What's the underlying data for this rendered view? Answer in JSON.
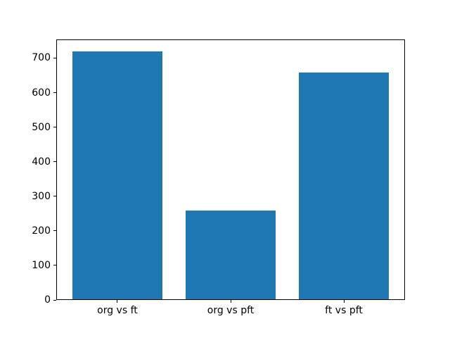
{
  "chart_data": {
    "type": "bar",
    "title": "",
    "xlabel": "",
    "ylabel": "",
    "categories": [
      "org vs ft",
      "org vs pft",
      "ft vs pft"
    ],
    "values": [
      718,
      256,
      656
    ],
    "yticks": [
      0,
      100,
      200,
      300,
      400,
      500,
      600,
      700
    ],
    "ylim": [
      0,
      754
    ],
    "bar_color": "#1f77b4",
    "grid": false,
    "legend": null,
    "background_color": "#ffffff",
    "spine_color": "#000000"
  }
}
